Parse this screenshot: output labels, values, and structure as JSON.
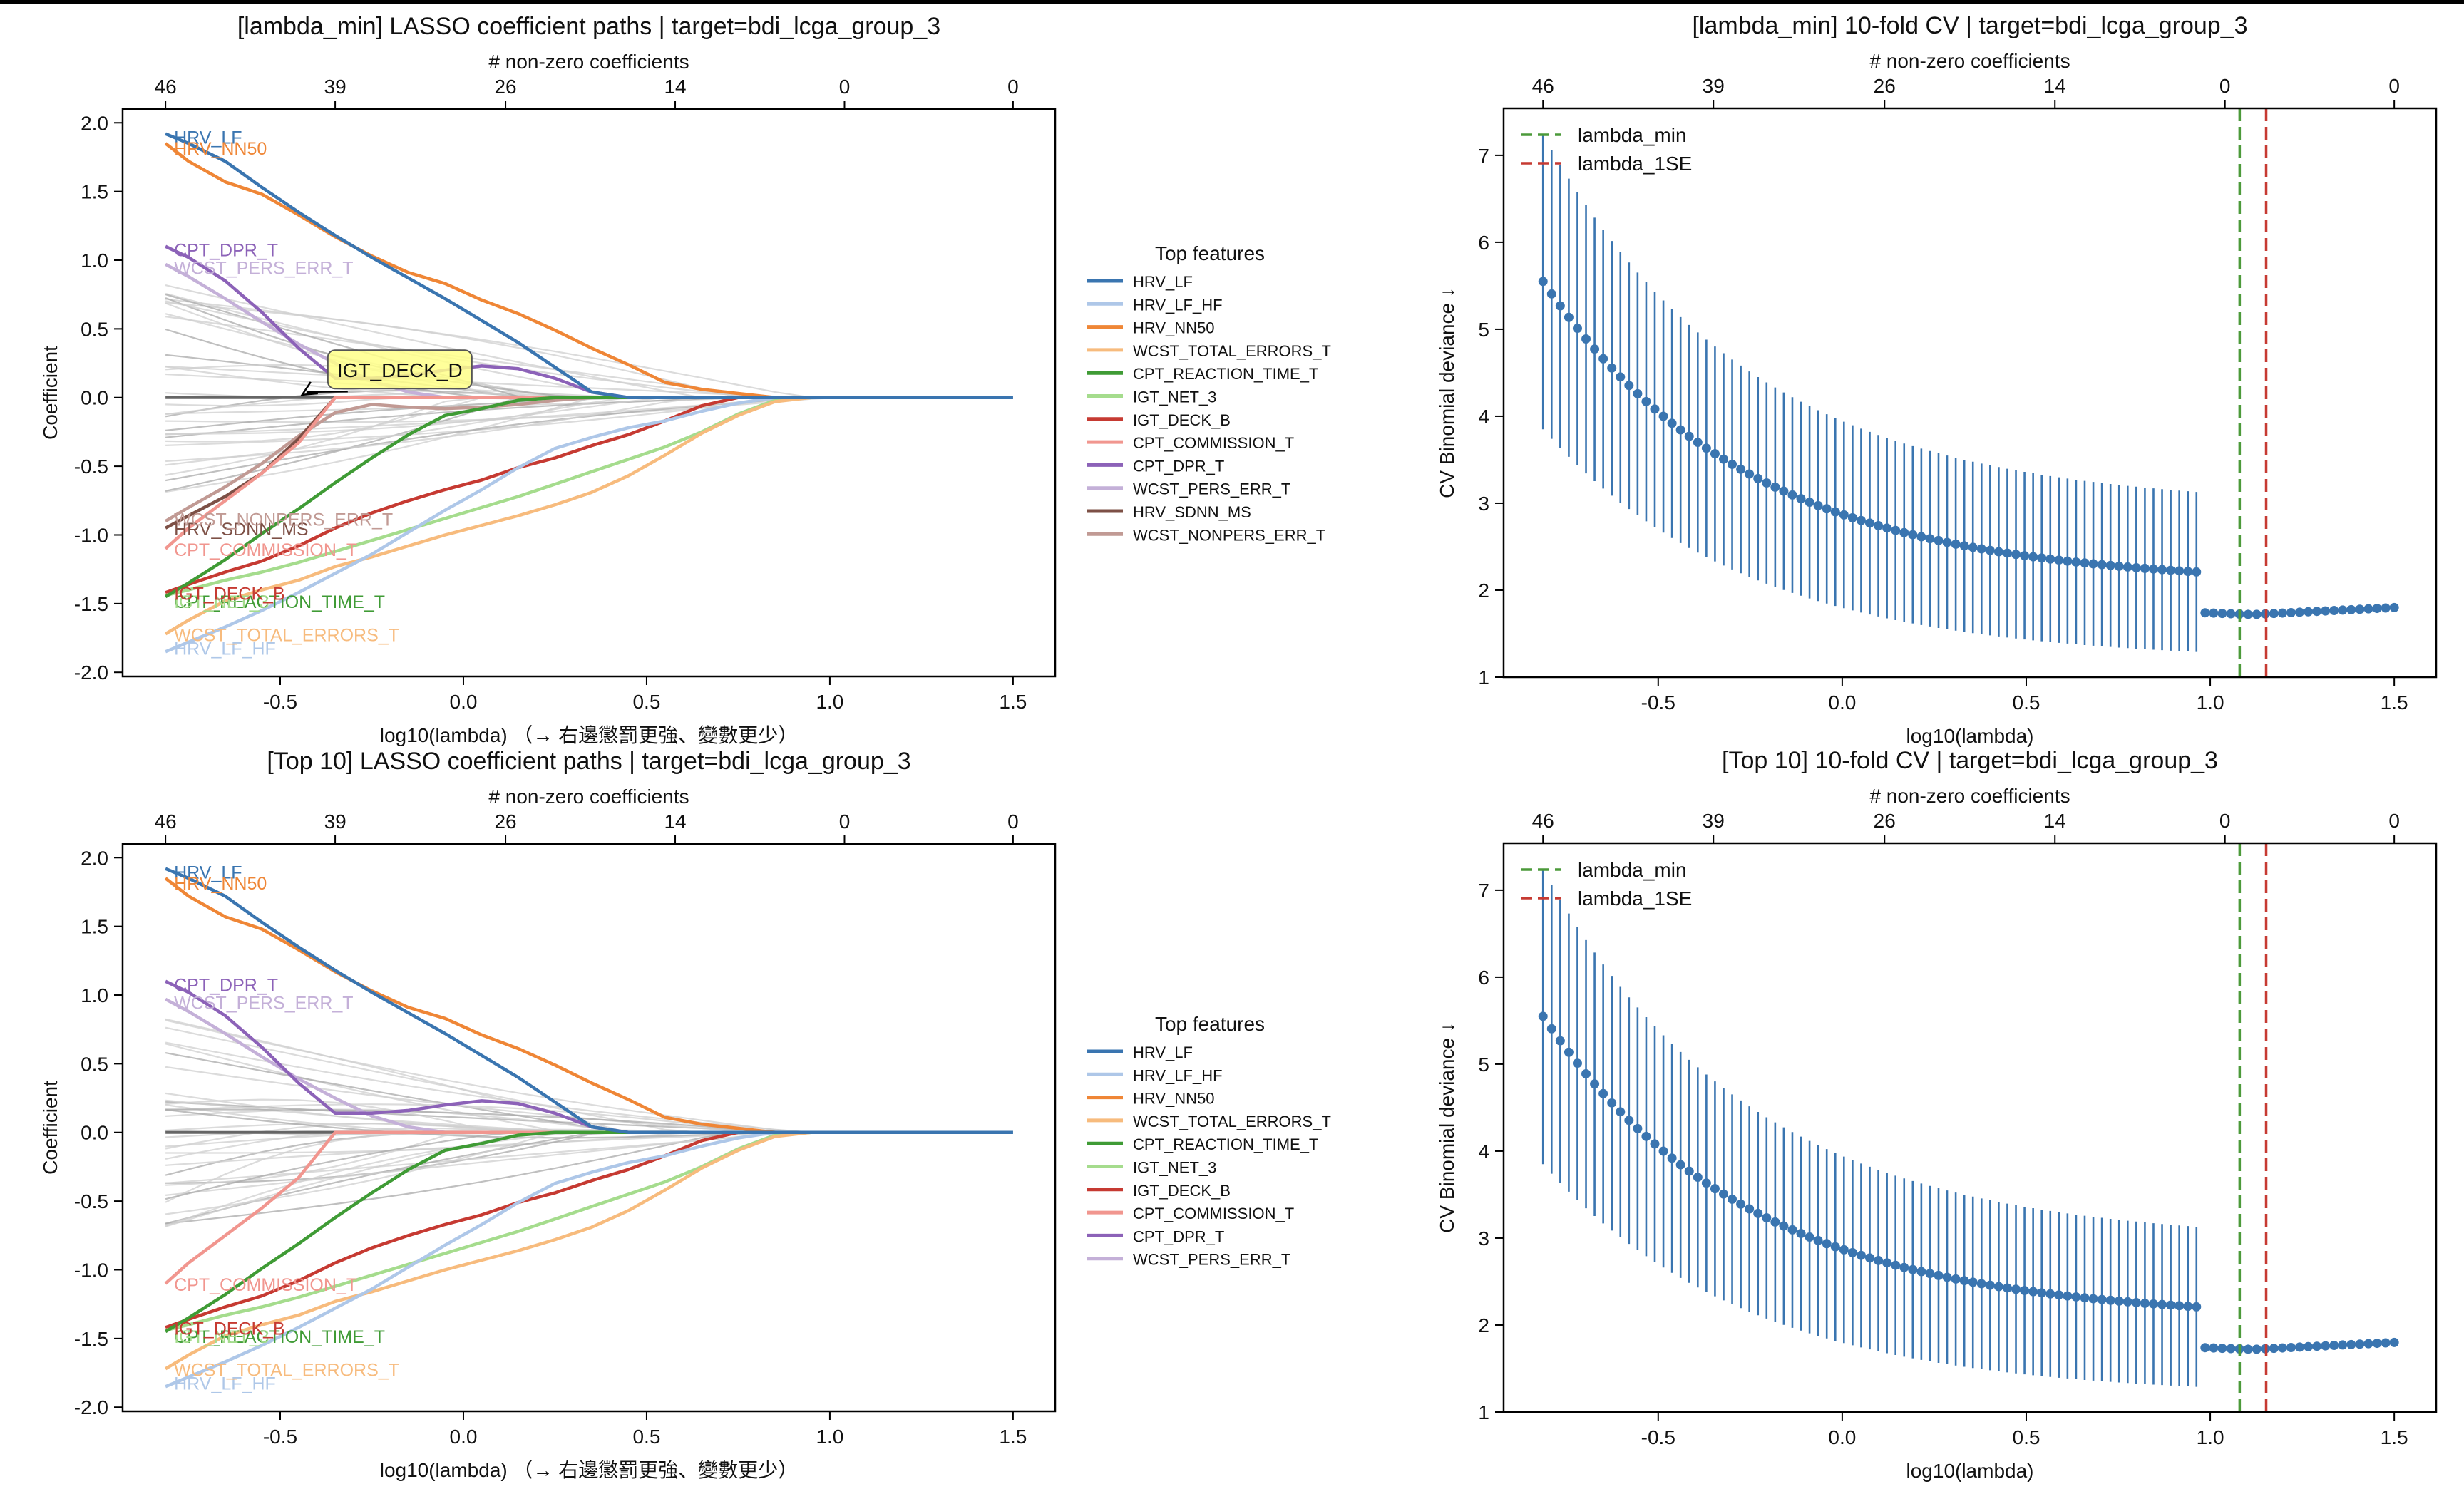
{
  "chart_data": [
    {
      "id": "coef_paths_lambda_min",
      "type": "line",
      "title": "[lambda_min] LASSO coefficient paths  |  target=bdi_lcga_group_3",
      "xlabel": "log10(lambda)  （→ 右邊懲罰更強、變數更少）",
      "ylabel": "Coefficient",
      "top_axis_label": "# non-zero coefficients",
      "top_ticks": [
        {
          "x": -0.813,
          "label": "46"
        },
        {
          "x": -0.35,
          "label": "39"
        },
        {
          "x": 0.115,
          "label": "26"
        },
        {
          "x": 0.578,
          "label": "14"
        },
        {
          "x": 1.04,
          "label": "0"
        },
        {
          "x": 1.5,
          "label": "0"
        }
      ],
      "xlim": [
        -0.93,
        1.615
      ],
      "ylim": [
        -2.03,
        2.1
      ],
      "xticks": [
        -0.5,
        0.0,
        0.5,
        1.0,
        1.5
      ],
      "yticks": [
        -2.0,
        -1.5,
        -1.0,
        -0.5,
        0.0,
        0.5,
        1.0,
        1.5,
        2.0
      ],
      "legend_title": "Top features",
      "legend_position": "outside-right",
      "annotation": {
        "text": "IGT_DECK_D",
        "box_at": [
          -0.37,
          0.2
        ],
        "arrow_to": [
          -0.44,
          0.02
        ],
        "box_color": "#ffff88"
      },
      "x_knots": [
        -0.813,
        -0.75,
        -0.65,
        -0.55,
        -0.45,
        -0.35,
        -0.25,
        -0.15,
        -0.05,
        0.05,
        0.15,
        0.25,
        0.35,
        0.45,
        0.55,
        0.65,
        0.75,
        0.85,
        0.95,
        1.05,
        1.5
      ],
      "series": [
        {
          "name": "HRV_LF",
          "color": "#3a75b0",
          "label_y": 1.9,
          "values": [
            1.92,
            1.85,
            1.72,
            1.53,
            1.35,
            1.18,
            1.02,
            0.87,
            0.72,
            0.56,
            0.4,
            0.22,
            0.04,
            0,
            0,
            0,
            0,
            0,
            0,
            0,
            0
          ]
        },
        {
          "name": "HRV_LF_HF",
          "color": "#aec7e8",
          "label_y": -1.82,
          "values": [
            -1.85,
            -1.78,
            -1.67,
            -1.55,
            -1.42,
            -1.28,
            -1.14,
            -0.98,
            -0.82,
            -0.67,
            -0.51,
            -0.37,
            -0.29,
            -0.22,
            -0.17,
            -0.1,
            -0.04,
            0,
            0,
            0,
            0
          ]
        },
        {
          "name": "HRV_NN50",
          "color": "#ef8636",
          "label_y": 1.82,
          "values": [
            1.85,
            1.72,
            1.57,
            1.48,
            1.33,
            1.17,
            1.03,
            0.91,
            0.83,
            0.71,
            0.61,
            0.49,
            0.36,
            0.24,
            0.11,
            0.06,
            0.03,
            0,
            0,
            0,
            0
          ]
        },
        {
          "name": "WCST_TOTAL_ERRORS_T",
          "color": "#f7bb7d",
          "label_y": -1.72,
          "values": [
            -1.72,
            -1.62,
            -1.48,
            -1.4,
            -1.33,
            -1.23,
            -1.16,
            -1.08,
            -1.0,
            -0.93,
            -0.86,
            -0.78,
            -0.69,
            -0.57,
            -0.42,
            -0.26,
            -0.13,
            -0.03,
            0,
            0,
            0
          ]
        },
        {
          "name": "CPT_REACTION_TIME_T",
          "color": "#3f9b35",
          "label_y": -1.48,
          "values": [
            -1.45,
            -1.35,
            -1.18,
            -0.99,
            -0.81,
            -0.62,
            -0.44,
            -0.27,
            -0.13,
            -0.08,
            -0.02,
            0,
            0,
            0,
            0,
            0,
            0,
            0,
            0,
            0,
            0
          ]
        },
        {
          "name": "IGT_NET_3",
          "color": "#a5dc8d",
          "label_y": -1.48,
          "values": [
            -1.44,
            -1.4,
            -1.33,
            -1.27,
            -1.2,
            -1.12,
            -1.04,
            -0.96,
            -0.88,
            -0.8,
            -0.72,
            -0.63,
            -0.54,
            -0.45,
            -0.36,
            -0.25,
            -0.12,
            -0.02,
            0,
            0,
            0
          ]
        },
        {
          "name": "IGT_DECK_B",
          "color": "#c63a32",
          "label_y": -1.42,
          "values": [
            -1.42,
            -1.36,
            -1.27,
            -1.19,
            -1.08,
            -0.95,
            -0.84,
            -0.75,
            -0.67,
            -0.6,
            -0.51,
            -0.44,
            -0.35,
            -0.27,
            -0.17,
            -0.06,
            0,
            0,
            0,
            0,
            0
          ]
        },
        {
          "name": "CPT_COMMISSION_T",
          "color": "#f1968f",
          "label_y": -1.1,
          "values": [
            -1.1,
            -0.95,
            -0.75,
            -0.55,
            -0.33,
            0,
            0,
            0,
            0,
            0,
            0,
            0,
            0,
            0,
            0,
            0,
            0,
            0,
            0,
            0,
            0
          ]
        },
        {
          "name": "CPT_DPR_T",
          "color": "#8c62b8",
          "label_y": 1.08,
          "values": [
            1.1,
            1.02,
            0.85,
            0.62,
            0.36,
            0.14,
            0.14,
            0.16,
            0.2,
            0.23,
            0.21,
            0.14,
            0.04,
            0,
            0,
            0,
            0,
            0,
            0,
            0,
            0
          ]
        },
        {
          "name": "WCST_PERS_ERR_T",
          "color": "#c4b0d8",
          "label_y": 0.95,
          "values": [
            0.97,
            0.88,
            0.72,
            0.55,
            0.39,
            0.25,
            0.12,
            0.04,
            0,
            0,
            0,
            0,
            0,
            0,
            0,
            0,
            0,
            0,
            0,
            0,
            0
          ]
        },
        {
          "name": "HRV_SDNN_MS",
          "color": "#7d5046",
          "label_y": -0.95,
          "values": [
            -0.95,
            -0.86,
            -0.72,
            -0.55,
            -0.3,
            0,
            0,
            0,
            0,
            0,
            0,
            0,
            0,
            0,
            0,
            0,
            0,
            0,
            0,
            0,
            0
          ]
        },
        {
          "name": "WCST_NONPERS_ERR_T",
          "color": "#c19a94",
          "label_y": -0.88,
          "values": [
            -0.9,
            -0.8,
            -0.65,
            -0.48,
            -0.28,
            -0.11,
            -0.05,
            -0.07,
            -0.08,
            -0.07,
            -0.05,
            -0.02,
            0,
            0,
            0,
            0,
            0,
            0,
            0,
            0,
            0
          ]
        }
      ],
      "background_series_count": 34
    },
    {
      "id": "cv_lambda_min",
      "type": "scatter",
      "title": "[lambda_min] 10-fold CV  |  target=bdi_lcga_group_3",
      "xlabel": "log10(lambda)",
      "ylabel": "CV Binomial deviance ↓",
      "top_axis_label": "# non-zero coefficients",
      "top_ticks": [
        {
          "x": -0.813,
          "label": "46"
        },
        {
          "x": -0.35,
          "label": "39"
        },
        {
          "x": 0.115,
          "label": "26"
        },
        {
          "x": 0.578,
          "label": "14"
        },
        {
          "x": 1.04,
          "label": "0"
        },
        {
          "x": 1.5,
          "label": "0"
        }
      ],
      "xlim": [
        -0.92,
        1.614
      ],
      "ylim": [
        1.0,
        7.54
      ],
      "xticks": [
        -0.5,
        0.0,
        0.5,
        1.0,
        1.5
      ],
      "yticks": [
        1,
        2,
        3,
        4,
        5,
        6,
        7
      ],
      "legend_position": "top-left",
      "vlines": [
        {
          "name": "lambda_min",
          "x": 1.08,
          "color": "#4c9a3a"
        },
        {
          "name": "lambda_1SE",
          "x": 1.152,
          "color": "#c63a32"
        }
      ],
      "point_color": "#3a75b0",
      "curve": {
        "n_points": 100,
        "x_start": -0.813,
        "x_end": 1.5,
        "segment1": {
          "n": 77,
          "mean_start": 5.55,
          "mean_end": 2.21,
          "upper_start": 7.24,
          "upper_end": 3.13,
          "lower_start": 3.85,
          "lower_end": 1.29
        },
        "segment2": {
          "n": 23,
          "mean_start": 1.74,
          "mean_min": 1.72,
          "mean_end": 1.8
        }
      }
    },
    {
      "id": "coef_paths_top10",
      "type": "line",
      "title": "[Top 10] LASSO coefficient paths  |  target=bdi_lcga_group_3",
      "xlabel": "log10(lambda)  （→ 右邊懲罰更強、變數更少）",
      "ylabel": "Coefficient",
      "top_axis_label": "# non-zero coefficients",
      "top_ticks": [
        {
          "x": -0.813,
          "label": "46"
        },
        {
          "x": -0.35,
          "label": "39"
        },
        {
          "x": 0.115,
          "label": "26"
        },
        {
          "x": 0.578,
          "label": "14"
        },
        {
          "x": 1.04,
          "label": "0"
        },
        {
          "x": 1.5,
          "label": "0"
        }
      ],
      "xlim": [
        -0.93,
        1.615
      ],
      "ylim": [
        -2.03,
        2.1
      ],
      "xticks": [
        -0.5,
        0.0,
        0.5,
        1.0,
        1.5
      ],
      "yticks": [
        -2.0,
        -1.5,
        -1.0,
        -0.5,
        0.0,
        0.5,
        1.0,
        1.5,
        2.0
      ],
      "legend_title": "Top features",
      "legend_position": "outside-right",
      "series_from": "coef_paths_lambda_min",
      "series_names": [
        "HRV_LF",
        "HRV_LF_HF",
        "HRV_NN50",
        "WCST_TOTAL_ERRORS_T",
        "CPT_REACTION_TIME_T",
        "IGT_NET_3",
        "IGT_DECK_B",
        "CPT_COMMISSION_T",
        "CPT_DPR_T",
        "WCST_PERS_ERR_T"
      ],
      "background_series_count": 36
    },
    {
      "id": "cv_top10",
      "type": "scatter",
      "title": "[Top 10] 10-fold CV  |  target=bdi_lcga_group_3",
      "xlabel": "log10(lambda)",
      "ylabel": "CV Binomial deviance ↓",
      "top_axis_label": "# non-zero coefficients",
      "top_ticks": [
        {
          "x": -0.813,
          "label": "46"
        },
        {
          "x": -0.35,
          "label": "39"
        },
        {
          "x": 0.115,
          "label": "26"
        },
        {
          "x": 0.578,
          "label": "14"
        },
        {
          "x": 1.04,
          "label": "0"
        },
        {
          "x": 1.5,
          "label": "0"
        }
      ],
      "xlim": [
        -0.92,
        1.614
      ],
      "ylim": [
        1.0,
        7.54
      ],
      "xticks": [
        -0.5,
        0.0,
        0.5,
        1.0,
        1.5
      ],
      "yticks": [
        1,
        2,
        3,
        4,
        5,
        6,
        7
      ],
      "legend_position": "top-left",
      "vlines": [
        {
          "name": "lambda_min",
          "x": 1.08,
          "color": "#4c9a3a"
        },
        {
          "name": "lambda_1SE",
          "x": 1.152,
          "color": "#c63a32"
        }
      ],
      "point_color": "#3a75b0",
      "curve_from": "cv_lambda_min"
    }
  ]
}
